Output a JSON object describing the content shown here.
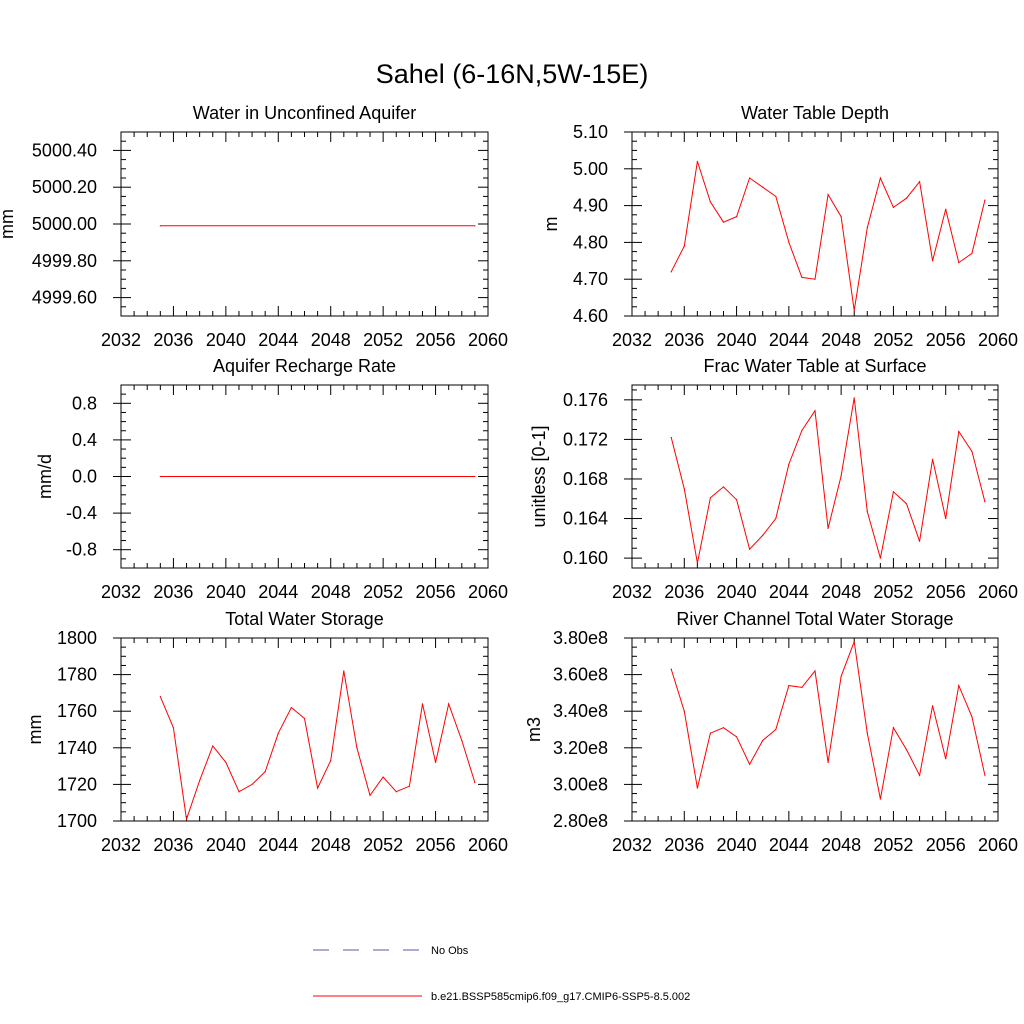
{
  "figure": {
    "title": "Sahel (6-16N,5W-15E)"
  },
  "legend": {
    "placement": "bottom-center",
    "entries": [
      {
        "label": "No Obs",
        "color": "#5a5aa8",
        "style": "dashed"
      },
      {
        "label": "b.e21.BSSP585cmip6.f09_g17.CMIP6-SSP5-8.5.002",
        "color": "#ff0000",
        "style": "solid"
      }
    ]
  },
  "chart_data": [
    {
      "type": "line",
      "title": "Water in Unconfined Aquifer",
      "ylabel": "mm",
      "xlim": [
        2032,
        2060
      ],
      "ylim": [
        4999.5,
        5000.5
      ],
      "xticks": [
        2032,
        2036,
        2040,
        2044,
        2048,
        2052,
        2056,
        2060
      ],
      "xticklabels": [
        "2032",
        "2036",
        "2040",
        "2044",
        "2048",
        "2052",
        "2056",
        "2060"
      ],
      "yticks": [
        4999.6,
        4999.8,
        5000.0,
        5000.2,
        5000.4
      ],
      "yticklabels": [
        "4999.60",
        "4999.80",
        "5000.00",
        "5000.20",
        "5000.40"
      ],
      "series": [
        {
          "color": "#ff0000",
          "x": [
            2035,
            2059
          ],
          "y": [
            4999.99,
            4999.99
          ]
        }
      ]
    },
    {
      "type": "line",
      "title": "Water Table Depth",
      "ylabel": "m",
      "xlim": [
        2032,
        2060
      ],
      "ylim": [
        4.6,
        5.1
      ],
      "xticks": [
        2032,
        2036,
        2040,
        2044,
        2048,
        2052,
        2056,
        2060
      ],
      "xticklabels": [
        "2032",
        "2036",
        "2040",
        "2044",
        "2048",
        "2052",
        "2056",
        "2060"
      ],
      "yticks": [
        4.6,
        4.7,
        4.8,
        4.9,
        5.0,
        5.1
      ],
      "yticklabels": [
        "4.60",
        "4.70",
        "4.80",
        "4.90",
        "5.00",
        "5.10"
      ],
      "series": [
        {
          "color": "#ff0000",
          "x": [
            2035,
            2036,
            2037,
            2038,
            2039,
            2040,
            2041,
            2042,
            2043,
            2044,
            2045,
            2046,
            2047,
            2048,
            2049,
            2050,
            2051,
            2052,
            2053,
            2054,
            2055,
            2056,
            2057,
            2058,
            2059
          ],
          "y": [
            4.72,
            4.79,
            5.02,
            4.91,
            4.855,
            4.87,
            4.975,
            4.95,
            4.925,
            4.8,
            4.705,
            4.7,
            4.93,
            4.87,
            4.615,
            4.84,
            4.975,
            4.895,
            4.92,
            4.965,
            4.75,
            4.89,
            4.745,
            4.77,
            4.915
          ]
        }
      ]
    },
    {
      "type": "line",
      "title": "Aquifer Recharge Rate",
      "ylabel": "mm/d",
      "xlim": [
        2032,
        2060
      ],
      "ylim": [
        -1.0,
        1.0
      ],
      "xticks": [
        2032,
        2036,
        2040,
        2044,
        2048,
        2052,
        2056,
        2060
      ],
      "xticklabels": [
        "2032",
        "2036",
        "2040",
        "2044",
        "2048",
        "2052",
        "2056",
        "2060"
      ],
      "yticks": [
        -0.8,
        -0.4,
        0.0,
        0.4,
        0.8
      ],
      "yticklabels": [
        "-0.8",
        "-0.4",
        "0.0",
        "0.4",
        "0.8"
      ],
      "series": [
        {
          "color": "#ff0000",
          "x": [
            2035,
            2059
          ],
          "y": [
            0.0,
            0.0
          ]
        }
      ]
    },
    {
      "type": "line",
      "title": "Frac Water Table at Surface",
      "ylabel": "unitless [0-1]",
      "xlim": [
        2032,
        2060
      ],
      "ylim": [
        0.159,
        0.1775
      ],
      "xticks": [
        2032,
        2036,
        2040,
        2044,
        2048,
        2052,
        2056,
        2060
      ],
      "xticklabels": [
        "2032",
        "2036",
        "2040",
        "2044",
        "2048",
        "2052",
        "2056",
        "2060"
      ],
      "yticks": [
        0.16,
        0.164,
        0.168,
        0.172,
        0.176
      ],
      "yticklabels": [
        "0.160",
        "0.164",
        "0.168",
        "0.172",
        "0.176"
      ],
      "series": [
        {
          "color": "#ff0000",
          "x": [
            2035,
            2036,
            2037,
            2038,
            2039,
            2040,
            2041,
            2042,
            2043,
            2044,
            2045,
            2046,
            2047,
            2048,
            2049,
            2050,
            2051,
            2052,
            2053,
            2054,
            2055,
            2056,
            2057,
            2058,
            2059
          ],
          "y": [
            0.1722,
            0.167,
            0.1595,
            0.1661,
            0.1672,
            0.1659,
            0.1609,
            0.1623,
            0.164,
            0.1695,
            0.1729,
            0.1749,
            0.163,
            0.1683,
            0.1762,
            0.1647,
            0.16,
            0.1667,
            0.1655,
            0.1617,
            0.17,
            0.164,
            0.1728,
            0.1708,
            0.1657
          ]
        }
      ]
    },
    {
      "type": "line",
      "title": "Total Water Storage",
      "ylabel": "mm",
      "xlim": [
        2032,
        2060
      ],
      "ylim": [
        1700,
        1800
      ],
      "xticks": [
        2032,
        2036,
        2040,
        2044,
        2048,
        2052,
        2056,
        2060
      ],
      "xticklabels": [
        "2032",
        "2036",
        "2040",
        "2044",
        "2048",
        "2052",
        "2056",
        "2060"
      ],
      "yticks": [
        1700,
        1720,
        1740,
        1760,
        1780,
        1800
      ],
      "yticklabels": [
        "1700",
        "1720",
        "1740",
        "1760",
        "1780",
        "1800"
      ],
      "series": [
        {
          "color": "#ff0000",
          "x": [
            2035,
            2036,
            2037,
            2038,
            2039,
            2040,
            2041,
            2042,
            2043,
            2044,
            2045,
            2046,
            2047,
            2048,
            2049,
            2050,
            2051,
            2052,
            2053,
            2054,
            2055,
            2056,
            2057,
            2058,
            2059
          ],
          "y": [
            1768,
            1751,
            1701,
            1722,
            1741,
            1732,
            1716,
            1720,
            1727,
            1748,
            1762,
            1756,
            1718,
            1733,
            1782,
            1740,
            1714,
            1724,
            1716,
            1719,
            1764,
            1732,
            1764,
            1744,
            1721
          ]
        }
      ]
    },
    {
      "type": "line",
      "title": "River Channel Total Water Storage",
      "ylabel": "m3",
      "xlim": [
        2032,
        2060
      ],
      "ylim": [
        280000000,
        380000000
      ],
      "xticks": [
        2032,
        2036,
        2040,
        2044,
        2048,
        2052,
        2056,
        2060
      ],
      "xticklabels": [
        "2032",
        "2036",
        "2040",
        "2044",
        "2048",
        "2052",
        "2056",
        "2060"
      ],
      "yticks": [
        280000000,
        300000000,
        320000000,
        340000000,
        360000000,
        380000000
      ],
      "yticklabels": [
        "2.80e8",
        "3.00e8",
        "3.20e8",
        "3.40e8",
        "3.60e8",
        "3.80e8"
      ],
      "series": [
        {
          "color": "#ff0000",
          "x": [
            2035,
            2036,
            2037,
            2038,
            2039,
            2040,
            2041,
            2042,
            2043,
            2044,
            2045,
            2046,
            2047,
            2048,
            2049,
            2050,
            2051,
            2052,
            2053,
            2054,
            2055,
            2056,
            2057,
            2058,
            2059
          ],
          "y": [
            363000000,
            340000000,
            298000000,
            328000000,
            331000000,
            326000000,
            311000000,
            324000000,
            330000000,
            354000000,
            353000000,
            362000000,
            312000000,
            359000000,
            378000000,
            328000000,
            292000000,
            331000000,
            319000000,
            305000000,
            343000000,
            314000000,
            354000000,
            337000000,
            305000000
          ]
        }
      ]
    }
  ]
}
